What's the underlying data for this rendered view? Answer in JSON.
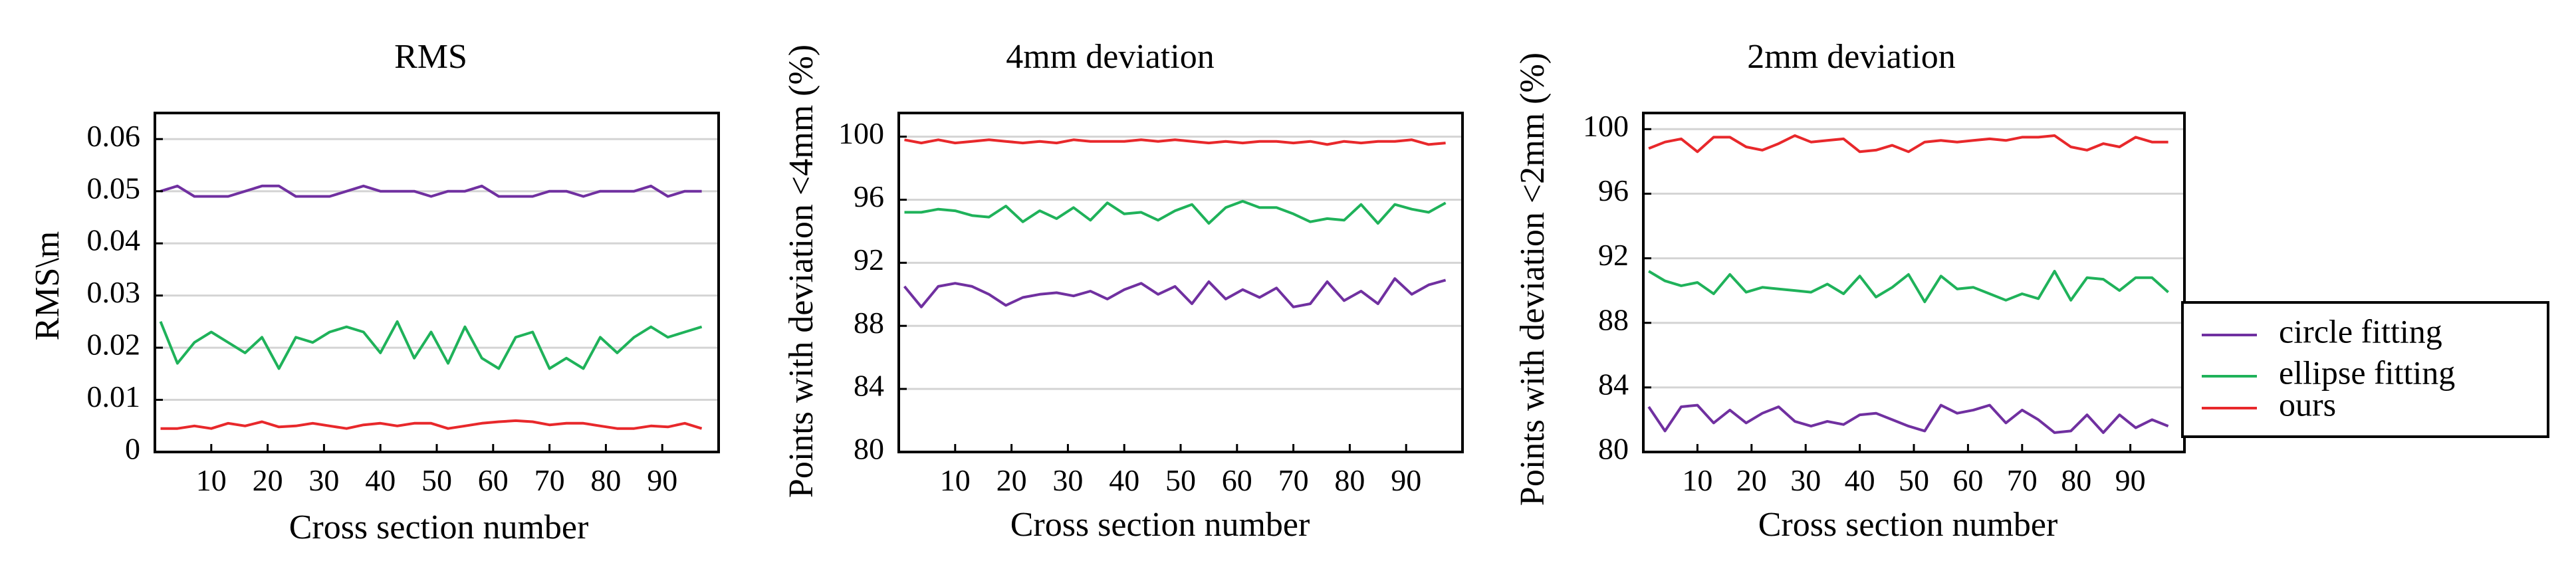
{
  "legend": {
    "entries": [
      {
        "label": "circle fitting",
        "color": "#7030a0"
      },
      {
        "label": "ellipse fitting",
        "color": "#1fb25a"
      },
      {
        "label": "ours",
        "color": "#e8282b"
      }
    ]
  },
  "chart_data": [
    {
      "type": "line",
      "title": "RMS",
      "xlabel": "Cross section number",
      "ylabel": "RMS\\m",
      "xlim": [
        0,
        100
      ],
      "ylim": [
        0,
        0.065
      ],
      "xticks": [
        10,
        20,
        30,
        40,
        50,
        60,
        70,
        80,
        90
      ],
      "xtick_labels": [
        "10",
        "20",
        "30",
        "40",
        "50",
        "60",
        "70",
        "80",
        "90"
      ],
      "yticks": [
        0,
        0.01,
        0.02,
        0.03,
        0.04,
        0.05,
        0.06
      ],
      "ytick_labels": [
        "0",
        "0.01",
        "0.02",
        "0.03",
        "0.04",
        "0.05",
        "0.06"
      ],
      "x": [
        1,
        4,
        7,
        10,
        13,
        16,
        19,
        22,
        25,
        28,
        31,
        34,
        37,
        40,
        43,
        46,
        49,
        52,
        55,
        58,
        61,
        64,
        67,
        70,
        73,
        76,
        79,
        82,
        85,
        88,
        91,
        94,
        97
      ],
      "series": [
        {
          "name": "circle fitting",
          "color": "#7030a0",
          "values": [
            0.05,
            0.051,
            0.049,
            0.049,
            0.049,
            0.05,
            0.051,
            0.051,
            0.049,
            0.049,
            0.049,
            0.05,
            0.051,
            0.05,
            0.05,
            0.05,
            0.049,
            0.05,
            0.05,
            0.051,
            0.049,
            0.049,
            0.049,
            0.05,
            0.05,
            0.049,
            0.05,
            0.05,
            0.05,
            0.051,
            0.049,
            0.05,
            0.05
          ]
        },
        {
          "name": "ellipse fitting",
          "color": "#1fb25a",
          "values": [
            0.025,
            0.017,
            0.021,
            0.023,
            0.021,
            0.019,
            0.022,
            0.016,
            0.022,
            0.021,
            0.023,
            0.024,
            0.023,
            0.019,
            0.025,
            0.018,
            0.023,
            0.017,
            0.024,
            0.018,
            0.016,
            0.022,
            0.023,
            0.016,
            0.018,
            0.016,
            0.022,
            0.019,
            0.022,
            0.024,
            0.022,
            0.023,
            0.024
          ]
        },
        {
          "name": "ours",
          "color": "#e8282b",
          "values": [
            0.0045,
            0.0045,
            0.005,
            0.0045,
            0.0055,
            0.005,
            0.0058,
            0.0048,
            0.005,
            0.0055,
            0.005,
            0.0045,
            0.0052,
            0.0055,
            0.005,
            0.0055,
            0.0055,
            0.0045,
            0.005,
            0.0055,
            0.0058,
            0.006,
            0.0058,
            0.0052,
            0.0055,
            0.0055,
            0.005,
            0.0045,
            0.0045,
            0.005,
            0.0048,
            0.0055,
            0.0045
          ]
        }
      ]
    },
    {
      "type": "line",
      "title": "4mm deviation",
      "xlabel": "Cross section number",
      "ylabel": "Points with deviation <4mm (%)",
      "xlim": [
        0,
        100
      ],
      "ylim": [
        80,
        101.5
      ],
      "xticks": [
        10,
        20,
        30,
        40,
        50,
        60,
        70,
        80,
        90
      ],
      "xtick_labels": [
        "10",
        "20",
        "30",
        "40",
        "50",
        "60",
        "70",
        "80",
        "90"
      ],
      "yticks": [
        80,
        84,
        88,
        92,
        96,
        100
      ],
      "ytick_labels": [
        "80",
        "84",
        "88",
        "92",
        "96",
        "100"
      ],
      "x": [
        1,
        4,
        7,
        10,
        13,
        16,
        19,
        22,
        25,
        28,
        31,
        34,
        37,
        40,
        43,
        46,
        49,
        52,
        55,
        58,
        61,
        64,
        67,
        70,
        73,
        76,
        79,
        82,
        85,
        88,
        91,
        94,
        97
      ],
      "series": [
        {
          "name": "circle fitting",
          "color": "#7030a0",
          "values": [
            90.5,
            89.2,
            90.5,
            90.7,
            90.5,
            90.0,
            89.3,
            89.8,
            90.0,
            90.1,
            89.9,
            90.2,
            89.7,
            90.3,
            90.7,
            90.0,
            90.5,
            89.4,
            90.8,
            89.7,
            90.3,
            89.8,
            90.4,
            89.2,
            89.4,
            90.8,
            89.6,
            90.2,
            89.4,
            91.0,
            90.0,
            90.6,
            90.9
          ]
        },
        {
          "name": "ellipse fitting",
          "color": "#1fb25a",
          "values": [
            95.2,
            95.2,
            95.4,
            95.3,
            95.0,
            94.9,
            95.6,
            94.6,
            95.3,
            94.8,
            95.5,
            94.7,
            95.8,
            95.1,
            95.2,
            94.7,
            95.3,
            95.7,
            94.5,
            95.5,
            95.9,
            95.5,
            95.5,
            95.1,
            94.6,
            94.8,
            94.7,
            95.7,
            94.5,
            95.7,
            95.4,
            95.2,
            95.8
          ]
        },
        {
          "name": "ours",
          "color": "#e8282b",
          "values": [
            99.8,
            99.6,
            99.8,
            99.6,
            99.7,
            99.8,
            99.7,
            99.6,
            99.7,
            99.6,
            99.8,
            99.7,
            99.7,
            99.7,
            99.8,
            99.7,
            99.8,
            99.7,
            99.6,
            99.7,
            99.6,
            99.7,
            99.7,
            99.6,
            99.7,
            99.5,
            99.7,
            99.6,
            99.7,
            99.7,
            99.8,
            99.5,
            99.6
          ]
        }
      ]
    },
    {
      "type": "line",
      "title": "2mm deviation",
      "xlabel": "Cross section number",
      "ylabel": "Points with deviation <2mm (%)",
      "xlim": [
        0,
        100
      ],
      "ylim": [
        80,
        101
      ],
      "xticks": [
        10,
        20,
        30,
        40,
        50,
        60,
        70,
        80,
        90
      ],
      "xtick_labels": [
        "10",
        "20",
        "30",
        "40",
        "50",
        "60",
        "70",
        "80",
        "90"
      ],
      "yticks": [
        80,
        84,
        88,
        92,
        96,
        100
      ],
      "ytick_labels": [
        "80",
        "84",
        "88",
        "92",
        "96",
        "100"
      ],
      "x": [
        1,
        4,
        7,
        10,
        13,
        16,
        19,
        22,
        25,
        28,
        31,
        34,
        37,
        40,
        43,
        46,
        49,
        52,
        55,
        58,
        61,
        64,
        67,
        70,
        73,
        76,
        79,
        82,
        85,
        88,
        91,
        94,
        97
      ],
      "series": [
        {
          "name": "circle fitting",
          "color": "#7030a0",
          "values": [
            82.8,
            81.3,
            82.8,
            82.9,
            81.8,
            82.6,
            81.8,
            82.4,
            82.8,
            81.9,
            81.6,
            81.9,
            81.7,
            82.3,
            82.4,
            82.0,
            81.6,
            81.3,
            82.9,
            82.4,
            82.6,
            82.9,
            81.8,
            82.6,
            82.0,
            81.2,
            81.3,
            82.3,
            81.2,
            82.3,
            81.5,
            82.0,
            81.6
          ]
        },
        {
          "name": "ellipse fitting",
          "color": "#1fb25a",
          "values": [
            91.2,
            90.6,
            90.3,
            90.5,
            89.8,
            91.0,
            89.9,
            90.2,
            90.1,
            90.0,
            89.9,
            90.4,
            89.8,
            90.9,
            89.6,
            90.2,
            91.0,
            89.3,
            90.9,
            90.1,
            90.2,
            89.8,
            89.4,
            89.8,
            89.5,
            91.2,
            89.4,
            90.8,
            90.7,
            90.0,
            90.8,
            90.8,
            89.9
          ]
        },
        {
          "name": "ours",
          "color": "#e8282b",
          "values": [
            98.8,
            99.2,
            99.4,
            98.6,
            99.5,
            99.5,
            98.9,
            98.7,
            99.1,
            99.6,
            99.2,
            99.3,
            99.4,
            98.6,
            98.7,
            99.0,
            98.6,
            99.2,
            99.3,
            99.2,
            99.3,
            99.4,
            99.3,
            99.5,
            99.5,
            99.6,
            98.9,
            98.7,
            99.1,
            98.9,
            99.5,
            99.2,
            99.2
          ]
        }
      ]
    }
  ]
}
